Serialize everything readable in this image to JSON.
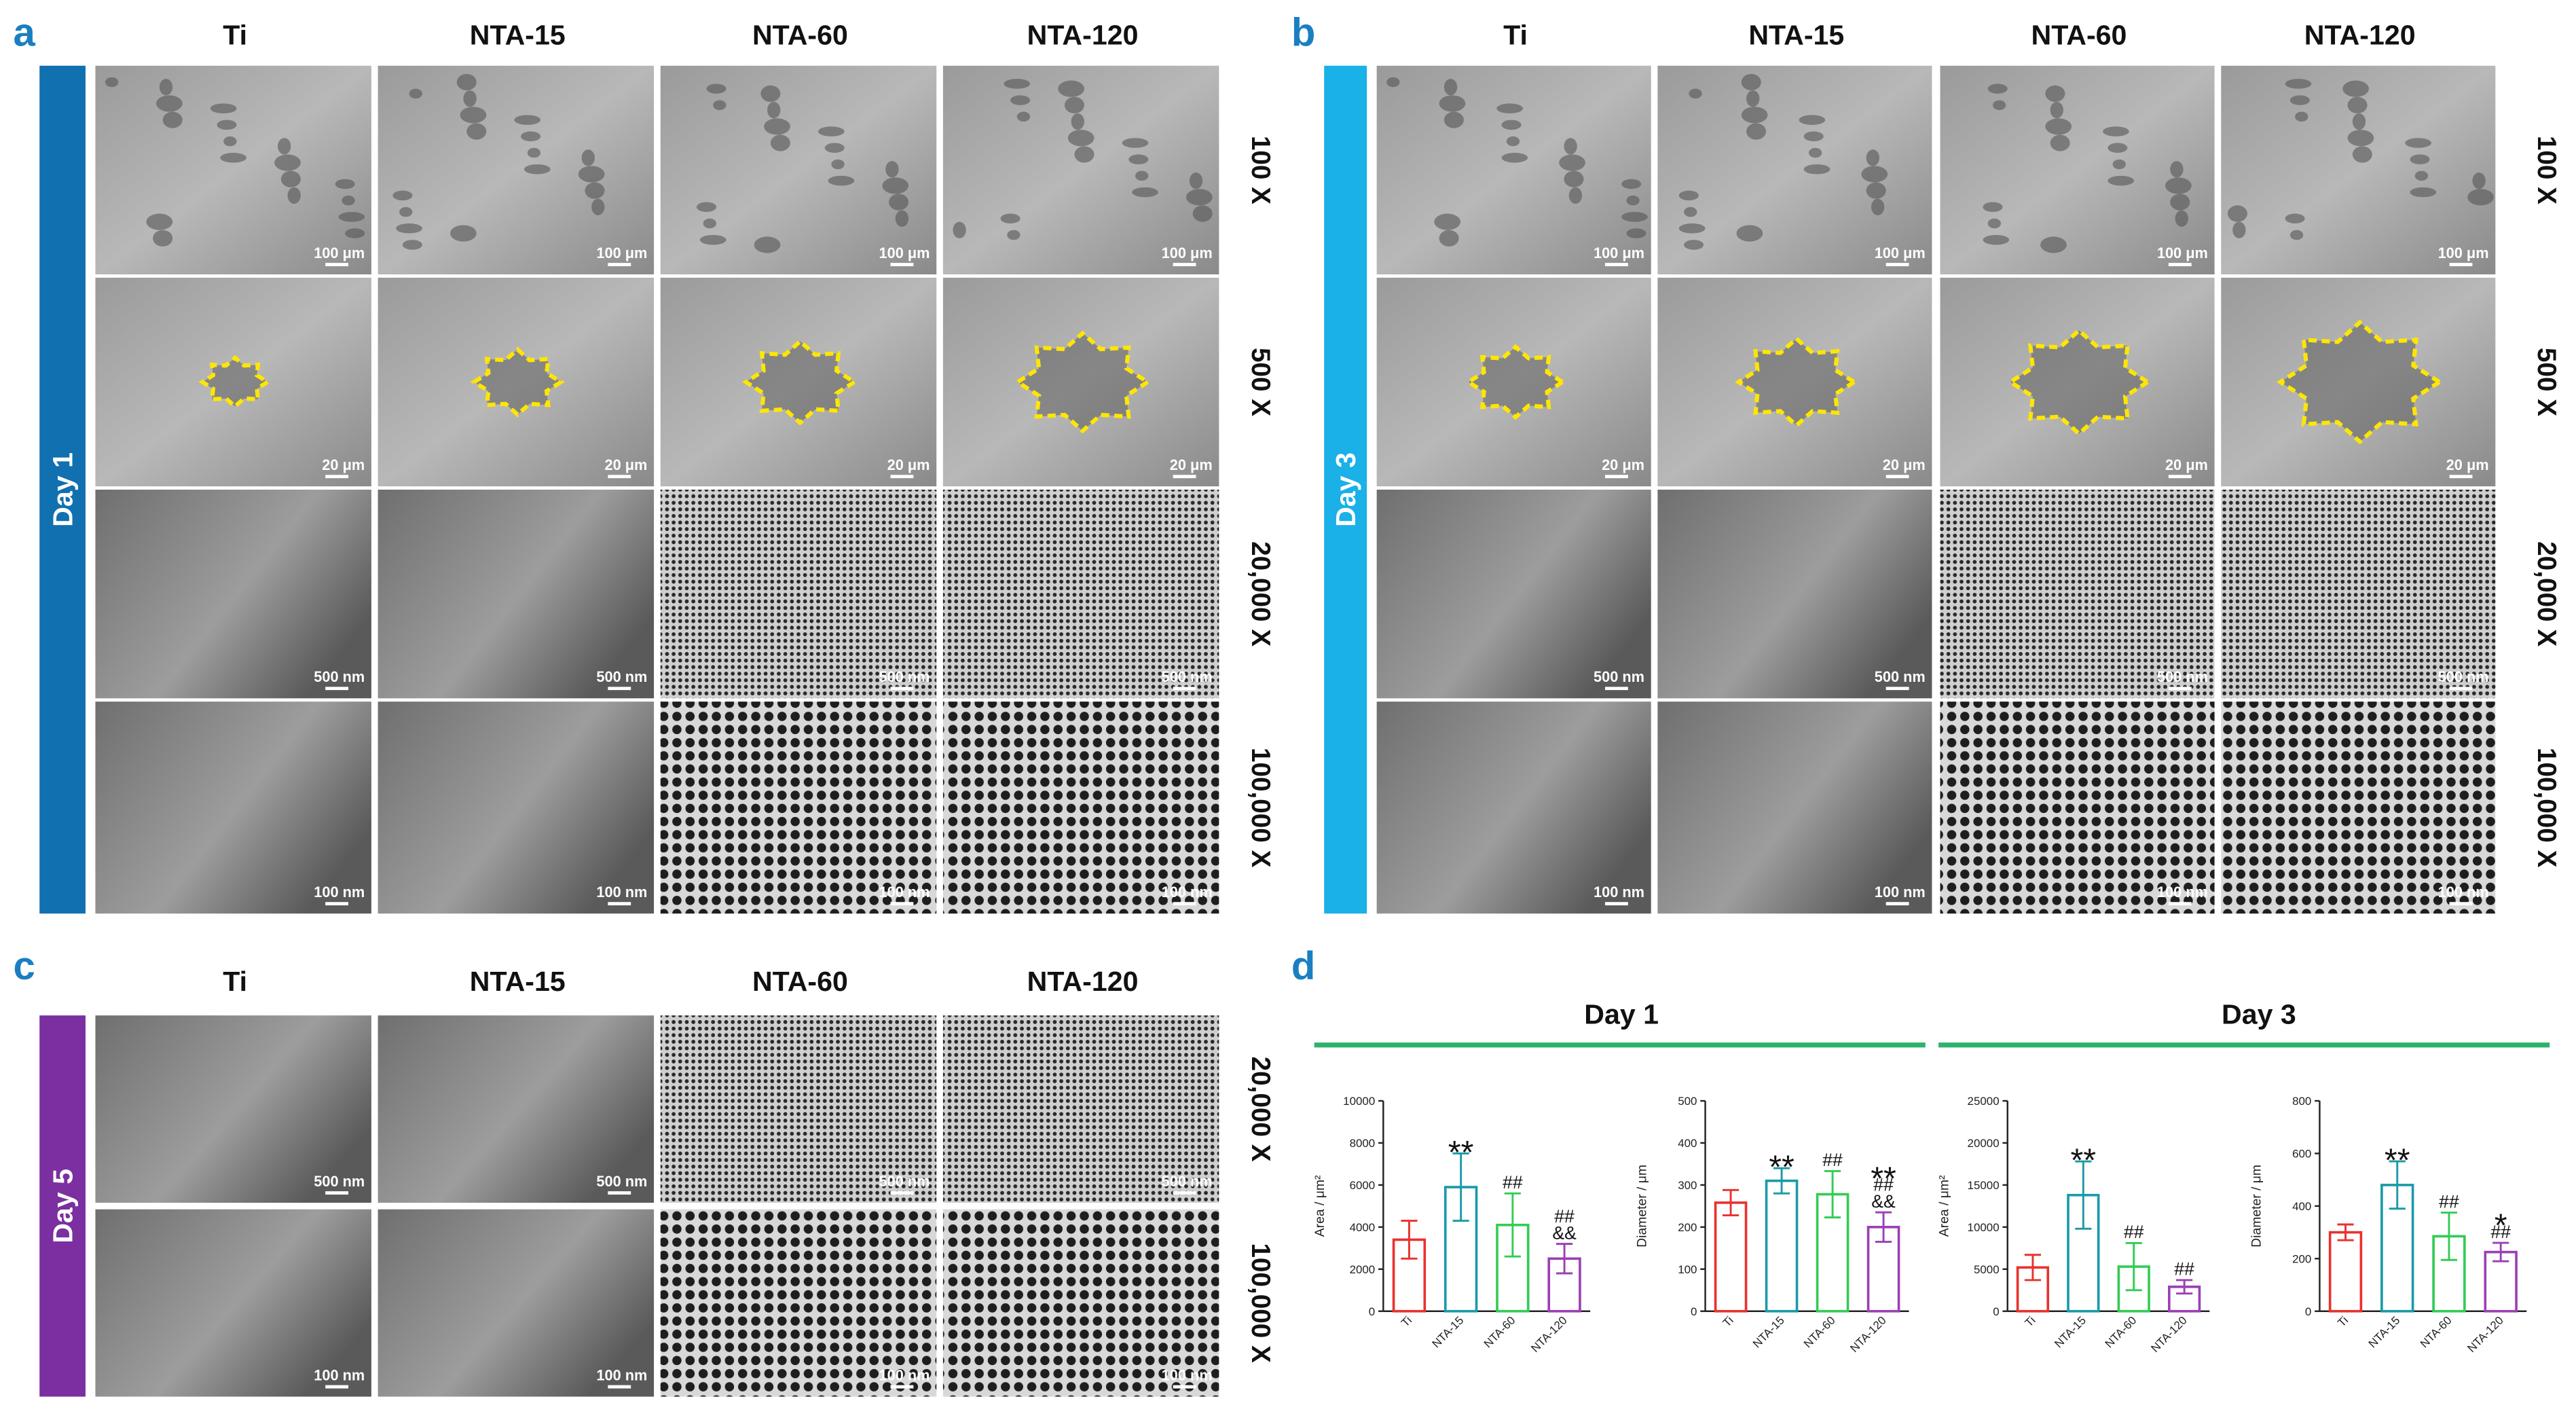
{
  "panels": [
    {
      "letter": "a",
      "day": "Day 1",
      "columns": [
        "Ti",
        "NTA-15",
        "NTA-60",
        "NTA-120"
      ],
      "rows": [
        {
          "label": "100 X",
          "scale_bar": "100 μm"
        },
        {
          "label": "500 X",
          "scale_bar": "20 μm"
        },
        {
          "label": "20,000 X",
          "scale_bar": "500 nm"
        },
        {
          "label": "100,000 X",
          "scale_bar": "100 nm"
        }
      ]
    },
    {
      "letter": "b",
      "day": "Day 3",
      "columns": [
        "Ti",
        "NTA-15",
        "NTA-60",
        "NTA-120"
      ],
      "rows": [
        {
          "label": "100 X",
          "scale_bar": "100 μm"
        },
        {
          "label": "500 X",
          "scale_bar": "20 μm"
        },
        {
          "label": "20,000 X",
          "scale_bar": "500 nm"
        },
        {
          "label": "100,000 X",
          "scale_bar": "100 nm"
        }
      ]
    },
    {
      "letter": "c",
      "day": "Day 5",
      "columns": [
        "Ti",
        "NTA-15",
        "NTA-60",
        "NTA-120"
      ],
      "rows": [
        {
          "label": "20,000 X",
          "scale_bar": "500 nm"
        },
        {
          "label": "100,000 X",
          "scale_bar": "100 nm"
        }
      ]
    }
  ],
  "panel_d": {
    "letter": "d",
    "groups": [
      "Day 1",
      "Day 3"
    ]
  },
  "chart_data": [
    {
      "type": "bar",
      "ylabel": "Area / μm²",
      "categories": [
        "Ti",
        "NTA-15",
        "NTA-60",
        "NTA-120"
      ],
      "values": [
        3400,
        5900,
        4100,
        2500
      ],
      "errors": [
        900,
        1600,
        1500,
        700
      ],
      "colors": [
        "#e8322e",
        "#1a9aa8",
        "#33cc55",
        "#9b3fb5"
      ],
      "ylim": [
        0,
        10000
      ],
      "yticks": [
        0,
        2000,
        4000,
        6000,
        8000,
        10000
      ],
      "annotations": [
        [],
        [
          "**"
        ],
        [
          "##"
        ],
        [
          "&&",
          "##"
        ]
      ]
    },
    {
      "type": "bar",
      "ylabel": "Diameter / μm",
      "categories": [
        "Ti",
        "NTA-15",
        "NTA-60",
        "NTA-120"
      ],
      "values": [
        258,
        310,
        278,
        200
      ],
      "errors": [
        30,
        30,
        55,
        35
      ],
      "colors": [
        "#e8322e",
        "#1a9aa8",
        "#33cc55",
        "#9b3fb5"
      ],
      "ylim": [
        0,
        500
      ],
      "yticks": [
        0,
        100,
        200,
        300,
        400,
        500
      ],
      "annotations": [
        [],
        [
          "**"
        ],
        [
          "##"
        ],
        [
          "&&",
          "##",
          "**"
        ]
      ]
    },
    {
      "type": "bar",
      "ylabel": "Area / μm²",
      "categories": [
        "Ti",
        "NTA-15",
        "NTA-60",
        "NTA-120"
      ],
      "values": [
        5200,
        13800,
        5300,
        2900
      ],
      "errors": [
        1500,
        4000,
        2800,
        800
      ],
      "colors": [
        "#e8322e",
        "#1a9aa8",
        "#33cc55",
        "#9b3fb5"
      ],
      "ylim": [
        0,
        25000
      ],
      "yticks": [
        0,
        5000,
        10000,
        15000,
        20000,
        25000
      ],
      "annotations": [
        [],
        [
          "**"
        ],
        [
          "##"
        ],
        [
          "##"
        ]
      ]
    },
    {
      "type": "bar",
      "ylabel": "Diameter / μm",
      "categories": [
        "Ti",
        "NTA-15",
        "NTA-60",
        "NTA-120"
      ],
      "values": [
        300,
        480,
        285,
        225
      ],
      "errors": [
        30,
        90,
        90,
        35
      ],
      "colors": [
        "#e8322e",
        "#1a9aa8",
        "#33cc55",
        "#9b3fb5"
      ],
      "ylim": [
        0,
        800
      ],
      "yticks": [
        0,
        200,
        400,
        600,
        800
      ],
      "annotations": [
        [],
        [
          "**"
        ],
        [
          "##"
        ],
        [
          "##",
          "*"
        ]
      ]
    }
  ]
}
